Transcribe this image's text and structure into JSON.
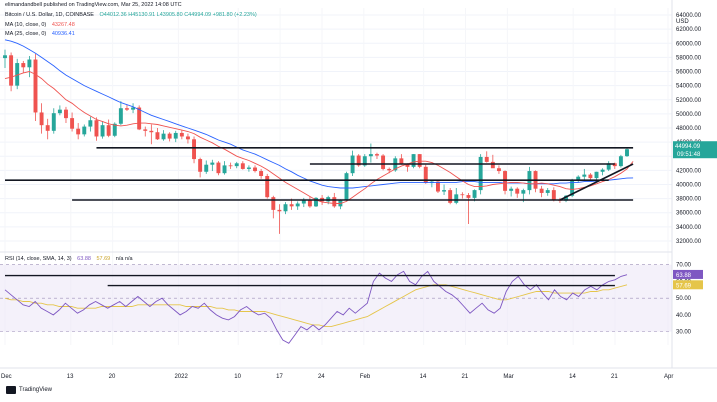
{
  "publisher": "elimandandbell published on TradingView.com, Mar 25, 2022 14:08 UTC",
  "brand": "TradingView",
  "chart_data": {
    "type": "candlestick",
    "symbol_line": {
      "symbol": "Bitcoin / U.S. Dollar, 1D, COINBASE",
      "ohlc": "O44012.36 H45130.91 L43905.80 C44994.09 +981.80 (+2.23%)"
    },
    "indicators_legend": [
      {
        "label": "MA (10, close, 0)",
        "value": "43267.48",
        "color": "#ef5350"
      },
      {
        "label": "MA (25, close, 0)",
        "value": "40936.41",
        "color": "#2962ff"
      }
    ],
    "currency": "USD",
    "price_tag": {
      "value": "44994.09",
      "countdown": "09:51:48"
    },
    "yticks": [
      "64000.00",
      "62000.00",
      "60000.00",
      "58000.00",
      "56000.00",
      "54000.00",
      "52000.00",
      "50000.00",
      "48000.00",
      "46000.00",
      "44000.00",
      "42000.00",
      "40000.00",
      "38000.00",
      "36000.00",
      "34000.00",
      "32000.00"
    ],
    "ylim": [
      31000,
      65000
    ],
    "xticks": [
      "Dec",
      "13",
      "20",
      "2022",
      "10",
      "17",
      "24",
      "Feb",
      "14",
      "21",
      "Mar",
      "14",
      "21",
      "Apr"
    ],
    "rsi": {
      "legend": "RSI (14, close, SMA, 14, 3)",
      "value": "63.88",
      "sma_value": "57.69",
      "na": "n/a n/a",
      "yticks": [
        "70.00",
        "60.00",
        "50.00",
        "40.00",
        "30.00"
      ],
      "ylim": [
        22,
        74
      ],
      "value_tag": "63.88",
      "sma_tag": "57.69",
      "values": [
        55,
        52,
        49,
        46,
        45,
        48,
        44,
        42,
        40,
        43,
        47,
        44,
        41,
        43,
        46,
        48,
        46,
        44,
        46,
        48,
        45,
        48,
        51,
        48,
        45,
        48,
        50,
        46,
        43,
        40,
        42,
        45,
        44,
        47,
        43,
        40,
        38,
        37,
        39,
        43,
        45,
        42,
        40,
        41,
        38,
        31,
        25,
        23,
        28,
        33,
        31,
        34,
        31,
        34,
        38,
        42,
        40,
        44,
        41,
        44,
        47,
        60,
        65,
        62,
        60,
        64,
        66,
        60,
        58,
        63,
        66,
        60,
        57,
        54,
        52,
        49,
        45,
        41,
        44,
        47,
        43,
        41,
        44,
        54,
        60,
        63,
        58,
        55,
        58,
        53,
        49,
        55,
        51,
        49,
        53,
        51,
        55,
        57,
        55,
        58,
        60,
        61,
        63,
        64
      ],
      "sma_values": [
        50,
        49,
        49,
        48,
        48,
        47,
        47,
        46,
        46,
        45,
        45,
        45,
        44,
        44,
        44,
        44,
        45,
        45,
        45,
        45,
        45,
        45,
        46,
        46,
        46,
        46,
        46,
        46,
        46,
        46,
        45,
        45,
        45,
        45,
        45,
        44,
        44,
        43,
        43,
        42,
        42,
        42,
        42,
        42,
        41,
        40,
        39,
        38,
        37,
        36,
        35,
        34,
        34,
        33,
        33,
        34,
        35,
        36,
        37,
        38,
        39,
        41,
        43,
        45,
        47,
        49,
        51,
        53,
        55,
        56,
        57,
        58,
        58,
        58,
        57,
        56,
        55,
        54,
        53,
        52,
        51,
        50,
        49,
        49,
        50,
        51,
        52,
        53,
        54,
        54,
        54,
        53,
        53,
        53,
        53,
        53,
        53,
        54,
        54,
        55,
        55,
        56,
        57,
        58
      ],
      "levels": [
        70,
        50,
        30
      ]
    },
    "candles": [
      [
        57900,
        59100,
        56500,
        58300
      ],
      [
        58300,
        58700,
        53200,
        54000
      ],
      [
        54000,
        57800,
        53500,
        57200
      ],
      [
        57200,
        57500,
        55800,
        56600
      ],
      [
        56600,
        58200,
        55200,
        57700
      ],
      [
        57700,
        58500,
        49000,
        50200
      ],
      [
        50200,
        51500,
        47200,
        48400
      ],
      [
        48400,
        49300,
        46400,
        47600
      ],
      [
        47600,
        50800,
        47200,
        50100
      ],
      [
        50100,
        51200,
        49800,
        50600
      ],
      [
        50600,
        51000,
        48700,
        49400
      ],
      [
        49400,
        50200,
        47500,
        47900
      ],
      [
        47900,
        48700,
        46400,
        47100
      ],
      [
        47100,
        48500,
        46800,
        48200
      ],
      [
        48200,
        49600,
        47500,
        49100
      ],
      [
        49100,
        49500,
        46200,
        46800
      ],
      [
        46800,
        49000,
        46500,
        48400
      ],
      [
        48400,
        49200,
        46700,
        46900
      ],
      [
        46900,
        48800,
        46700,
        48600
      ],
      [
        48600,
        51800,
        48400,
        50800
      ],
      [
        50800,
        51300,
        50400,
        50600
      ],
      [
        50600,
        51500,
        50100,
        50900
      ],
      [
        50900,
        51200,
        47700,
        47800
      ],
      [
        47800,
        48200,
        46800,
        47600
      ],
      [
        47600,
        48500,
        45700,
        47400
      ],
      [
        47400,
        48000,
        46300,
        46400
      ],
      [
        46400,
        47700,
        46200,
        47200
      ],
      [
        47200,
        47400,
        46100,
        46500
      ],
      [
        46500,
        47600,
        46000,
        47300
      ],
      [
        47300,
        47700,
        46400,
        46800
      ],
      [
        46800,
        47200,
        45800,
        46400
      ],
      [
        46400,
        46800,
        43000,
        43600
      ],
      [
        43600,
        43800,
        41000,
        41800
      ],
      [
        41800,
        43400,
        41500,
        42800
      ],
      [
        42800,
        43500,
        41900,
        43100
      ],
      [
        43100,
        43300,
        41300,
        41600
      ],
      [
        41600,
        43300,
        41400,
        42700
      ],
      [
        42700,
        43100,
        42200,
        42600
      ],
      [
        42600,
        43200,
        42300,
        43000
      ],
      [
        43000,
        43300,
        42100,
        42200
      ],
      [
        42200,
        42700,
        41800,
        42400
      ],
      [
        42400,
        42700,
        41700,
        41900
      ],
      [
        41900,
        42200,
        40800,
        41200
      ],
      [
        41200,
        41500,
        38000,
        38200
      ],
      [
        38200,
        38400,
        35200,
        36400
      ],
      [
        36400,
        37200,
        33000,
        36200
      ],
      [
        36200,
        37500,
        35800,
        37200
      ],
      [
        37200,
        38000,
        36400,
        36900
      ],
      [
        36900,
        37600,
        36400,
        37300
      ],
      [
        37300,
        38100,
        36800,
        37800
      ],
      [
        37800,
        38300,
        36700,
        36900
      ],
      [
        36900,
        38200,
        36800,
        38100
      ],
      [
        38100,
        38500,
        37100,
        37600
      ],
      [
        37600,
        38400,
        37200,
        38200
      ],
      [
        38200,
        38800,
        36700,
        36900
      ],
      [
        36900,
        37900,
        36500,
        37800
      ],
      [
        37800,
        41800,
        37600,
        41600
      ],
      [
        41600,
        44800,
        41200,
        44100
      ],
      [
        44100,
        44300,
        42500,
        42700
      ],
      [
        42700,
        44300,
        42500,
        44000
      ],
      [
        44000,
        45800,
        43100,
        44300
      ],
      [
        44300,
        44500,
        43600,
        44100
      ],
      [
        44100,
        44300,
        42000,
        42200
      ],
      [
        42200,
        42400,
        41600,
        42000
      ],
      [
        42000,
        44000,
        41800,
        43700
      ],
      [
        43700,
        44300,
        42800,
        42900
      ],
      [
        42900,
        43000,
        41800,
        42500
      ],
      [
        42500,
        44300,
        42300,
        44300
      ],
      [
        44300,
        44300,
        42300,
        42500
      ],
      [
        42500,
        42800,
        40100,
        40200
      ],
      [
        40200,
        40600,
        39600,
        40400
      ],
      [
        40400,
        40600,
        38800,
        39000
      ],
      [
        39000,
        40000,
        38500,
        39200
      ],
      [
        39200,
        39500,
        37200,
        37400
      ],
      [
        37400,
        39500,
        37200,
        38600
      ],
      [
        38600,
        38900,
        38000,
        38500
      ],
      [
        38500,
        38800,
        34400,
        38100
      ],
      [
        38100,
        39300,
        37600,
        39200
      ],
      [
        39200,
        44300,
        38600,
        43900
      ],
      [
        43900,
        44700,
        43100,
        43200
      ],
      [
        43200,
        44200,
        42500,
        42300
      ],
      [
        42300,
        42700,
        41500,
        41900
      ],
      [
        41900,
        42000,
        38600,
        39100
      ],
      [
        39100,
        39700,
        38300,
        39400
      ],
      [
        39400,
        39600,
        38100,
        38700
      ],
      [
        38700,
        39400,
        37500,
        39200
      ],
      [
        39200,
        42500,
        38600,
        41900
      ],
      [
        41900,
        42000,
        38900,
        39400
      ],
      [
        39400,
        39800,
        38200,
        38800
      ],
      [
        38800,
        39500,
        38400,
        39200
      ],
      [
        39200,
        39600,
        37600,
        37800
      ],
      [
        37800,
        38100,
        37400,
        37700
      ],
      [
        37700,
        38500,
        37500,
        38400
      ],
      [
        38400,
        40800,
        38200,
        40600
      ],
      [
        40600,
        41300,
        40300,
        41100
      ],
      [
        41100,
        42200,
        40600,
        41400
      ],
      [
        41400,
        41600,
        40500,
        40900
      ],
      [
        40900,
        41800,
        40700,
        41800
      ],
      [
        41800,
        42300,
        41300,
        42100
      ],
      [
        42100,
        43300,
        41900,
        43000
      ],
      [
        43000,
        43100,
        42200,
        42600
      ],
      [
        42600,
        44200,
        42400,
        44000
      ],
      [
        44012,
        45131,
        43906,
        44994
      ]
    ],
    "ma10": [
      55000,
      55200,
      55500,
      55800,
      56000,
      55600,
      55000,
      54200,
      53600,
      52800,
      52000,
      51500,
      50800,
      50200,
      49700,
      49200,
      48900,
      48600,
      48400,
      48300,
      48400,
      48600,
      48700,
      48700,
      48600,
      48500,
      48300,
      48100,
      47900,
      47700,
      47500,
      47200,
      46700,
      46300,
      45900,
      45400,
      45000,
      44500,
      44000,
      43700,
      43400,
      43000,
      42600,
      42100,
      41500,
      40900,
      40300,
      39800,
      39300,
      38800,
      38300,
      37800,
      37500,
      37400,
      37300,
      37300,
      37600,
      38200,
      38800,
      39400,
      40100,
      40700,
      41200,
      41700,
      42200,
      42600,
      42900,
      43200,
      43300,
      43300,
      43100,
      42700,
      42200,
      41700,
      41100,
      40500,
      40000,
      39700,
      39700,
      39800,
      40000,
      40100,
      40200,
      40300,
      40300,
      40200,
      40100,
      40100,
      40200,
      40100,
      39900,
      39700,
      39400,
      39300,
      39400,
      39600,
      39800,
      40100,
      40400,
      40700,
      41100,
      41600,
      42200,
      43267
    ],
    "ma25": [
      60500,
      60300,
      60000,
      59600,
      59100,
      58600,
      58000,
      57400,
      56800,
      56100,
      55500,
      55000,
      54500,
      54000,
      53600,
      53200,
      52800,
      52400,
      52000,
      51600,
      51300,
      51000,
      50600,
      50200,
      49800,
      49500,
      49200,
      48900,
      48600,
      48300,
      48000,
      47700,
      47400,
      47100,
      46700,
      46300,
      46000,
      45700,
      45300,
      44900,
      44600,
      44300,
      43900,
      43500,
      43100,
      42700,
      42200,
      41800,
      41300,
      40900,
      40500,
      40200,
      39900,
      39700,
      39600,
      39500,
      39500,
      39500,
      39600,
      39700,
      39800,
      39900,
      40000,
      40100,
      40200,
      40300,
      40300,
      40300,
      40300,
      40300,
      40300,
      40300,
      40300,
      40300,
      40300,
      40400,
      40400,
      40400,
      40300,
      40300,
      40300,
      40300,
      40200,
      40200,
      40200,
      40200,
      40100,
      40100,
      40100,
      40100,
      40100,
      40200,
      40200,
      40300,
      40300,
      40400,
      40400,
      40500,
      40600,
      40600,
      40700,
      40800,
      40900,
      40936
    ],
    "support_resistance": [
      {
        "kind": "horizontal",
        "value": 45200,
        "from_index": 15,
        "to_index": 103
      },
      {
        "kind": "horizontal",
        "value": 42900,
        "from_index": 50,
        "to_index": 100
      },
      {
        "kind": "horizontal",
        "value": 40600,
        "from_index": 0,
        "to_index": 99
      },
      {
        "kind": "horizontal",
        "value": 37800,
        "from_index": 11,
        "to_index": 103
      },
      {
        "kind": "trend",
        "from": [
          91,
          37800
        ],
        "to": [
          103,
          42900
        ]
      }
    ],
    "rsi_lines": [
      {
        "value": 63.5,
        "from_index": 0,
        "to_index": 101
      },
      {
        "value": 57.5,
        "from_index": 17,
        "to_index": 101
      }
    ],
    "grid": true,
    "colors": {
      "up": "#26a69a",
      "down": "#ef5350"
    }
  }
}
